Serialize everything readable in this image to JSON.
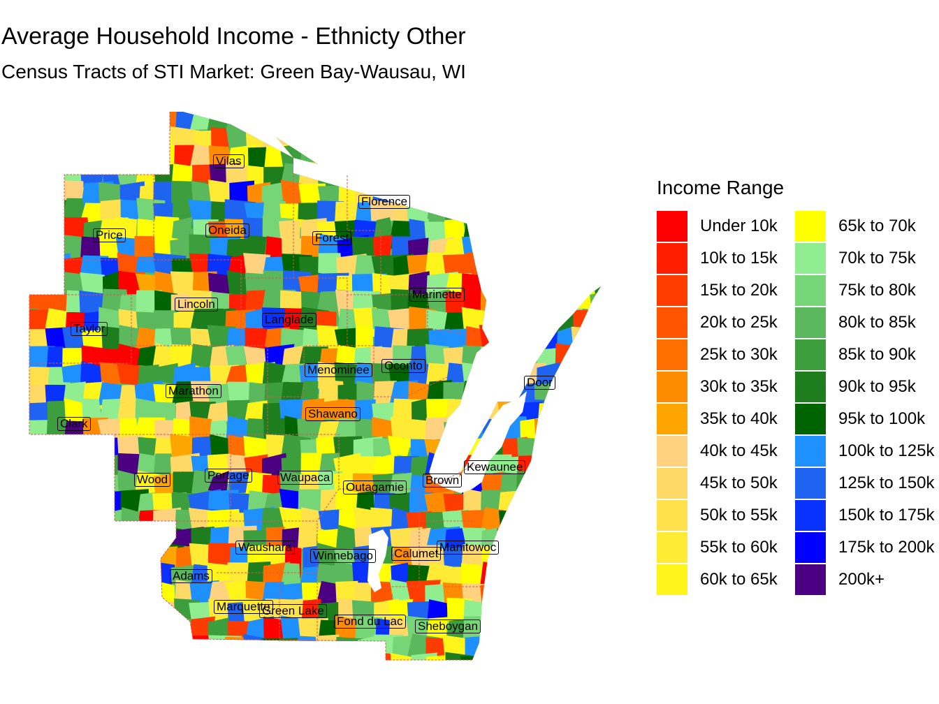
{
  "title": "Average Household Income - Ethnicty Other",
  "subtitle": "Census Tracts of STI Market: Green Bay-Wausau, WI",
  "legend": {
    "title": "Income Range",
    "items": [
      {
        "label": "Under 10k",
        "color": "#FF0000"
      },
      {
        "label": "10k to 15k",
        "color": "#FF1E00"
      },
      {
        "label": "15k to 20k",
        "color": "#FF3C00"
      },
      {
        "label": "20k to 25k",
        "color": "#FF5500"
      },
      {
        "label": "25k to 30k",
        "color": "#FF6E00"
      },
      {
        "label": "30k to 35k",
        "color": "#FF8C00"
      },
      {
        "label": "35k to 40k",
        "color": "#FFA500"
      },
      {
        "label": "40k to 45k",
        "color": "#FFD27F"
      },
      {
        "label": "45k to 50k",
        "color": "#FFD966"
      },
      {
        "label": "50k to 55k",
        "color": "#FFE14D"
      },
      {
        "label": "55k to 60k",
        "color": "#FFEB33"
      },
      {
        "label": "60k to 65k",
        "color": "#FFF51A"
      },
      {
        "label": "65k to 70k",
        "color": "#FFFF00"
      },
      {
        "label": "70k to 75k",
        "color": "#90EE90"
      },
      {
        "label": "75k to 80k",
        "color": "#76D576"
      },
      {
        "label": "80k to 85k",
        "color": "#5CB85C"
      },
      {
        "label": "85k to 90k",
        "color": "#3C9E3C"
      },
      {
        "label": "90k to 95k",
        "color": "#1E7E1E"
      },
      {
        "label": "95k to 100k",
        "color": "#006400"
      },
      {
        "label": "100k to 125k",
        "color": "#1E90FF"
      },
      {
        "label": "125k to 150k",
        "color": "#1E64F0"
      },
      {
        "label": "150k to 175k",
        "color": "#0A32FF"
      },
      {
        "label": "175k to 200k",
        "color": "#0000FF"
      },
      {
        "label": "200k+",
        "color": "#4B0082"
      }
    ]
  },
  "counties": [
    {
      "name": "Vilas"
    },
    {
      "name": "Florence"
    },
    {
      "name": "Price"
    },
    {
      "name": "Oneida"
    },
    {
      "name": "Forest"
    },
    {
      "name": "Marinette"
    },
    {
      "name": "Lincoln"
    },
    {
      "name": "Langlade"
    },
    {
      "name": "Taylor"
    },
    {
      "name": "Menominee"
    },
    {
      "name": "Oconto"
    },
    {
      "name": "Door"
    },
    {
      "name": "Marathon"
    },
    {
      "name": "Shawano"
    },
    {
      "name": "Clark"
    },
    {
      "name": "Kewaunee"
    },
    {
      "name": "Wood"
    },
    {
      "name": "Portage"
    },
    {
      "name": "Waupaca"
    },
    {
      "name": "Outagamie"
    },
    {
      "name": "Brown"
    },
    {
      "name": "Waushara"
    },
    {
      "name": "Winnebago"
    },
    {
      "name": "Calumet"
    },
    {
      "name": "Manitowoc"
    },
    {
      "name": "Adams"
    },
    {
      "name": "Marquette"
    },
    {
      "name": "Green Lake"
    },
    {
      "name": "Fond du Lac"
    },
    {
      "name": "Sheboygan"
    }
  ]
}
